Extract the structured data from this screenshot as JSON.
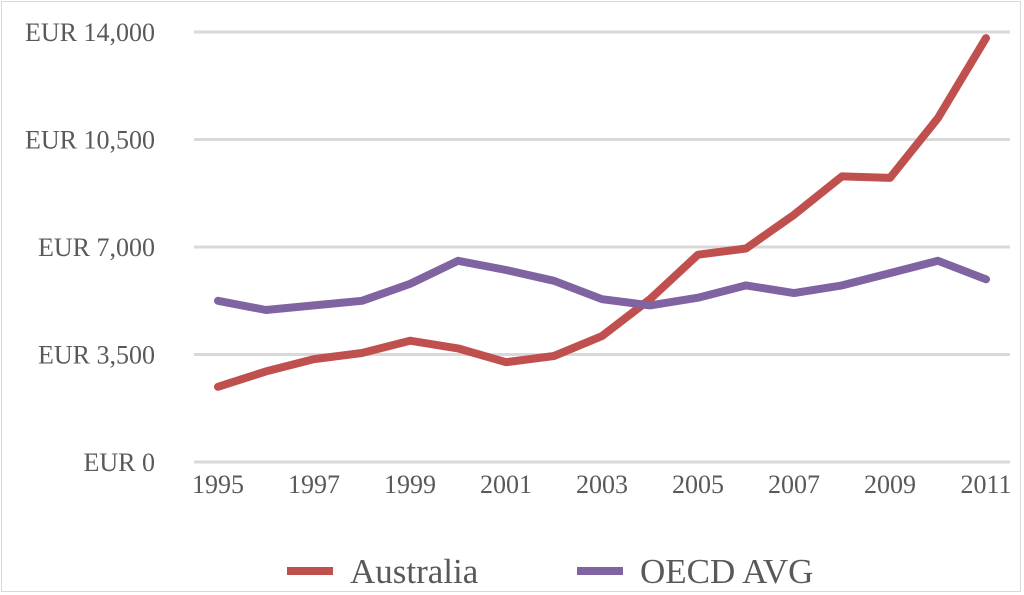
{
  "chart_data": {
    "type": "line",
    "x": [
      "1995",
      "1996",
      "1997",
      "1998",
      "1999",
      "2000",
      "2001",
      "2002",
      "2003",
      "2004",
      "2005",
      "2006",
      "2007",
      "2008",
      "2009",
      "2010",
      "2011"
    ],
    "x_tick_labels": [
      "1995",
      "1997",
      "1999",
      "2001",
      "2003",
      "2005",
      "2007",
      "2009",
      "2011"
    ],
    "y_tick_labels": [
      "EUR 0",
      "EUR 3,500",
      "EUR 7,000",
      "EUR 10,500",
      "EUR 14,000"
    ],
    "ylim": [
      0,
      14000
    ],
    "grid": true,
    "legend_position": "bottom",
    "series": [
      {
        "name": "Australia",
        "color": "#c0504d",
        "values": [
          2450,
          2950,
          3350,
          3550,
          3950,
          3700,
          3250,
          3450,
          4100,
          5300,
          6750,
          6950,
          8050,
          9300,
          9250,
          11200,
          13800
        ]
      },
      {
        "name": "OECD AVG",
        "color": "#8064a2",
        "values": [
          5250,
          4950,
          5100,
          5250,
          5800,
          6550,
          6250,
          5900,
          5300,
          5100,
          5350,
          5750,
          5500,
          5750,
          6150,
          6550,
          5950
        ]
      }
    ]
  }
}
